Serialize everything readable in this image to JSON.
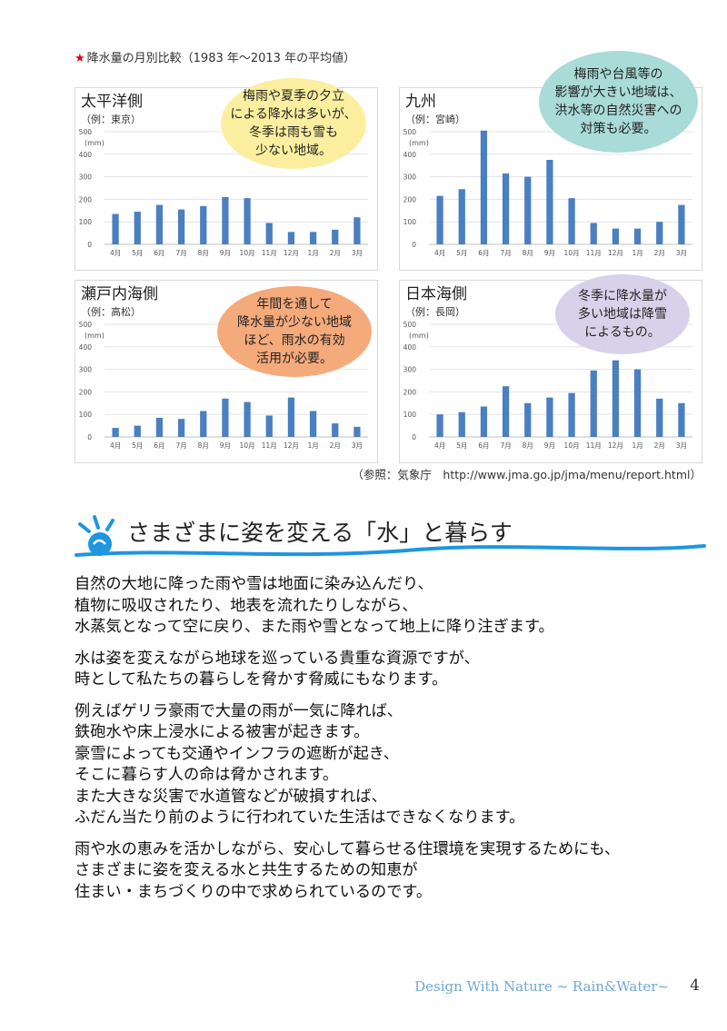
{
  "figure_title": "降水量の月別比較（1983 年～2013 年の平均値）",
  "star": "★",
  "unit": "(mm)",
  "reference": "（参照：気象庁　http://www.jma.go.jp/jma/menu/report.html）",
  "colors": {
    "bar": "#4a7fc1",
    "accent_star": "#e60012",
    "wave": "#1e96e0",
    "footer": "#6ea9d6"
  },
  "panels": [
    {
      "title": "太平洋側",
      "example": "（例：東京）",
      "bubble": "梅雨や夏季の夕立\nによる降水は多いが、\n冬季は雨も雪も\n少ない地域。",
      "bubble_color": "#fbef9f"
    },
    {
      "title": "九州",
      "example": "（例：宮崎）",
      "bubble": "梅雨や台風等の\n影響が大きい地域は、\n洪水等の自然災害への\n対策も必要。",
      "bubble_color": "#a9dbd8"
    },
    {
      "title": "瀬戸内海側",
      "example": "（例：高松）",
      "bubble": "年間を通して\n降水量が少ない地域\nほど、雨水の有効\n活用が必要。",
      "bubble_color": "#f5aa7b"
    },
    {
      "title": "日本海側",
      "example": "（例：長岡）",
      "bubble": "冬季に降水量が\n多い地域は降雪\nによるもの。",
      "bubble_color": "#d7d2ea"
    }
  ],
  "chart_data": [
    {
      "type": "bar",
      "title": "太平洋側",
      "ylabel": "(mm)",
      "ylim": [
        0,
        500
      ],
      "yticks": [
        0,
        100,
        200,
        300,
        400,
        500
      ],
      "categories": [
        "4月",
        "5月",
        "6月",
        "7月",
        "8月",
        "9月",
        "10月",
        "11月",
        "12月",
        "1月",
        "2月",
        "3月"
      ],
      "values": [
        135,
        145,
        175,
        155,
        170,
        210,
        205,
        95,
        55,
        55,
        65,
        120
      ]
    },
    {
      "type": "bar",
      "title": "九州",
      "ylabel": "(mm)",
      "ylim": [
        0,
        500
      ],
      "yticks": [
        0,
        100,
        200,
        300,
        400,
        500
      ],
      "categories": [
        "4月",
        "5月",
        "6月",
        "7月",
        "8月",
        "9月",
        "10月",
        "11月",
        "12月",
        "1月",
        "2月",
        "3月"
      ],
      "values": [
        215,
        245,
        505,
        315,
        300,
        375,
        205,
        95,
        70,
        70,
        100,
        175
      ]
    },
    {
      "type": "bar",
      "title": "瀬戸内海側",
      "ylabel": "(mm)",
      "ylim": [
        0,
        500
      ],
      "yticks": [
        0,
        100,
        200,
        300,
        400,
        500
      ],
      "categories": [
        "4月",
        "5月",
        "6月",
        "7月",
        "8月",
        "9月",
        "10月",
        "11月",
        "12月",
        "1月",
        "2月",
        "3月"
      ],
      "values": [
        40,
        50,
        85,
        80,
        115,
        170,
        155,
        95,
        175,
        115,
        60,
        45
      ]
    },
    {
      "type": "bar",
      "title": "日本海側",
      "ylabel": "(mm)",
      "ylim": [
        0,
        500
      ],
      "yticks": [
        0,
        100,
        200,
        300,
        400,
        500
      ],
      "categories": [
        "4月",
        "5月",
        "6月",
        "7月",
        "8月",
        "9月",
        "10月",
        "11月",
        "12月",
        "1月",
        "2月",
        "3月"
      ],
      "values": [
        100,
        110,
        135,
        225,
        150,
        175,
        195,
        295,
        340,
        300,
        170,
        150
      ]
    }
  ],
  "heading": "さまざまに姿を変える「水」と暮らす",
  "paragraphs": [
    "自然の大地に降った雨や雪は地面に染み込んだり、\n植物に吸収されたり、地表を流れたりしながら、\n水蒸気となって空に戻り、また雨や雪となって地上に降り注ぎます。",
    "水は姿を変えながら地球を巡っている貴重な資源ですが、\n時として私たちの暮らしを脅かす脅威にもなります。",
    "例えばゲリラ豪雨で大量の雨が一気に降れば、\n鉄砲水や床上浸水による被害が起きます。\n豪雪によっても交通やインフラの遮断が起き、\nそこに暮らす人の命は脅かされます。\nまた大きな災害で水道管などが破損すれば、\nふだん当たり前のように行われていた生活はできなくなります。",
    "雨や水の恵みを活かしながら、安心して暮らせる住環境を実現するためにも、\nさまざまに姿を変える水と共生するための知恵が\n住まい・まちづくりの中で求められているのです。"
  ],
  "footer": "Design With Nature ~ Rain&Water~",
  "page_number": "4"
}
